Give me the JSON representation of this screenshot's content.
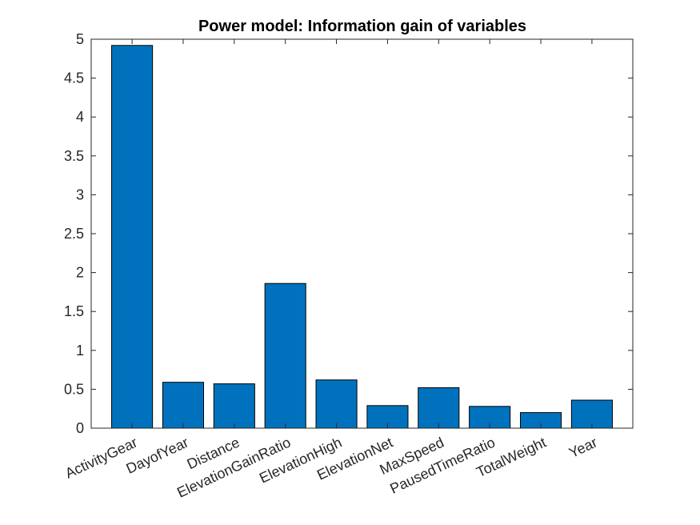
{
  "chart_data": {
    "type": "bar",
    "title": "Power model: Information gain of variables",
    "xlabel": "",
    "ylabel": "",
    "categories": [
      "ActivityGear",
      "DayofYear",
      "Distance",
      "ElevationGainRatio",
      "ElevationHigh",
      "ElevationNet",
      "MaxSpeed",
      "PausedTimeRatio",
      "TotalWeight",
      "Year"
    ],
    "values": [
      4.92,
      0.59,
      0.57,
      1.86,
      0.62,
      0.29,
      0.52,
      0.28,
      0.2,
      0.36
    ],
    "ylim": [
      0,
      5
    ],
    "yticks": [
      0,
      0.5,
      1,
      1.5,
      2,
      2.5,
      3,
      3.5,
      4,
      4.5,
      5
    ],
    "yticklabels": [
      "0",
      "0.5",
      "1",
      "1.5",
      "2",
      "2.5",
      "3",
      "3.5",
      "4",
      "4.5",
      "5"
    ],
    "grid": false,
    "bar_color": "#0072BD"
  }
}
